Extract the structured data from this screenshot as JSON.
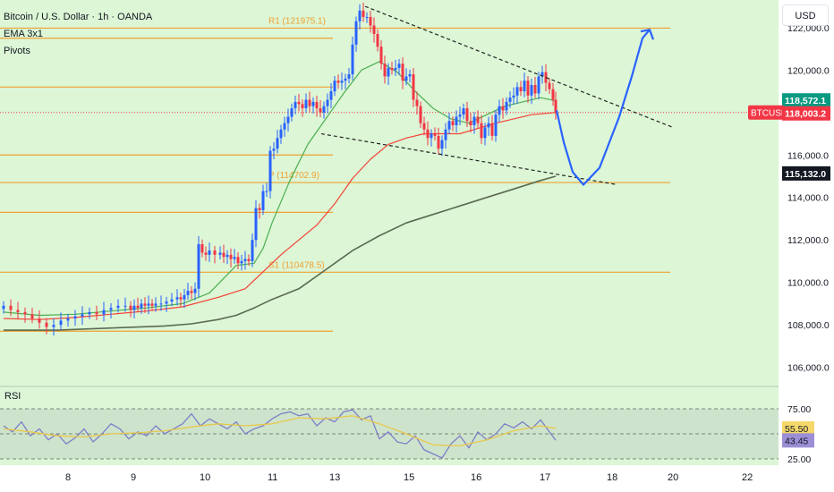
{
  "header": {
    "title": "Bitcoin / U.S. Dollar · 1h · OANDA",
    "indicator_ema": "EMA 3x1",
    "indicator_pivots": "Pivots",
    "currency": "USD"
  },
  "rsi_panel": {
    "title": "RSI"
  },
  "colors": {
    "background": "#dcf6d6",
    "up_candle": "#2962ff",
    "down_candle": "#f23645",
    "pivot_line": "#f0a030",
    "ema_fast": "#4caf50",
    "ema_mid": "#f44336",
    "ema_slow": "#5b6b4f",
    "projection": "#2962ff",
    "rsi_line": "#7e7ec8",
    "rsi_ma": "#e8c84a",
    "trend_line": "#222222"
  },
  "chart_data": [
    {
      "type": "candlestick",
      "symbol": "BTCUSD",
      "title": "Bitcoin / U.S. Dollar · 1h · OANDA",
      "x_ticks": [
        "8",
        "9",
        "10",
        "11",
        "13",
        "15",
        "16",
        "17",
        "18",
        "20",
        "22"
      ],
      "y_ticks": [
        "106,000.0",
        "108,000.0",
        "110,000.0",
        "112,000.0",
        "114,000.0",
        "116,000.0",
        "118,000.0",
        "120,000.0",
        "122,000.0"
      ],
      "ylim": [
        105100,
        123300
      ],
      "pivots": [
        {
          "label": "R1 (121975.1)",
          "value": 121975.1
        },
        {
          "label": "P (114702.9)",
          "value": 114702.9
        },
        {
          "label": "S1 (110478.5)",
          "value": 110478.5
        }
      ],
      "pivot_history_levels": [
        121500,
        119200,
        116000,
        113300,
        107700
      ],
      "price_labels": [
        {
          "text": "118,572.1",
          "value": 118572.1,
          "color": "#089981"
        },
        {
          "text": "BTCUSD",
          "value": 118003.2,
          "color": "#f23645"
        },
        {
          "text": "118,003.2",
          "value": 118003.2,
          "color": "#f23645"
        },
        {
          "text": "115,132.0",
          "value": 115132.0,
          "color": "#131722"
        }
      ],
      "series": [
        {
          "name": "BTCUSD",
          "kind": "close",
          "x": [
            0,
            8,
            16,
            24,
            32,
            40,
            48,
            56,
            64,
            72,
            80,
            88,
            96,
            104,
            112,
            120,
            128,
            136,
            142,
            146,
            150,
            154,
            158,
            162,
            166,
            170,
            176,
            182,
            188,
            194,
            198,
            202,
            206,
            210,
            214,
            218,
            222,
            226,
            230,
            236,
            242,
            246,
            250,
            254,
            258,
            262,
            266,
            270,
            274,
            278,
            282,
            286,
            290,
            294,
            298,
            302,
            306,
            310,
            314,
            318,
            322,
            326,
            330,
            334,
            338,
            342,
            346,
            350,
            354,
            358,
            362,
            366,
            370,
            374,
            378,
            382,
            386,
            390,
            394,
            398,
            402,
            406,
            410,
            414,
            418,
            422,
            426,
            430,
            434,
            438,
            442,
            446,
            450,
            454,
            458,
            462,
            466,
            470,
            474,
            478,
            482,
            486,
            490,
            494,
            498,
            502,
            506,
            510,
            514,
            518,
            522,
            526,
            530,
            534,
            538,
            542,
            546,
            550,
            554,
            558,
            562,
            566,
            570,
            574,
            578,
            582,
            586,
            590,
            594,
            598,
            602,
            606,
            610,
            614,
            617
          ],
          "values": [
            108900,
            108700,
            108600,
            108500,
            108300,
            108100,
            107900,
            108000,
            108200,
            108300,
            108400,
            108500,
            108600,
            108500,
            108700,
            108800,
            108900,
            108900,
            108700,
            108900,
            108800,
            109000,
            108900,
            109000,
            108900,
            109000,
            109000,
            109100,
            109200,
            109300,
            109200,
            109400,
            109600,
            109500,
            109700,
            111800,
            111400,
            111300,
            111500,
            111300,
            111400,
            111200,
            111300,
            111100,
            111200,
            110900,
            111000,
            111100,
            111000,
            112000,
            113500,
            113400,
            114300,
            114300,
            116200,
            116300,
            116800,
            117200,
            117500,
            117800,
            118200,
            118500,
            118400,
            118200,
            118600,
            118300,
            118500,
            118200,
            118000,
            118300,
            118600,
            119000,
            119500,
            119400,
            119500,
            119600,
            119800,
            121200,
            122300,
            122800,
            122500,
            122500,
            122100,
            121700,
            121100,
            120300,
            119700,
            120100,
            120000,
            120100,
            120300,
            119500,
            119700,
            119800,
            118600,
            118300,
            117500,
            117200,
            116800,
            117000,
            116900,
            116300,
            116700,
            117200,
            117600,
            117400,
            117800,
            117900,
            118200,
            117600,
            117400,
            117800,
            117500,
            116800,
            117300,
            117500,
            116900,
            117900,
            118300,
            118100,
            118500,
            118700,
            118800,
            119200,
            119000,
            119500,
            118800,
            119300,
            118900,
            119700,
            119900,
            119400,
            119100,
            118600,
            118003
          ]
        },
        {
          "name": "EMA 3x1 fast",
          "kind": "line",
          "x": [
            0,
            40,
            80,
            120,
            160,
            200,
            230,
            260,
            280,
            290,
            300,
            320,
            340,
            360,
            380,
            400,
            420,
            440,
            460,
            480,
            500,
            520,
            540,
            560,
            580,
            600,
            617
          ],
          "values": [
            108600,
            108450,
            108500,
            108650,
            108800,
            109000,
            109500,
            110800,
            110900,
            111600,
            112800,
            114800,
            116500,
            117700,
            118900,
            120000,
            120400,
            119900,
            119000,
            118200,
            117700,
            117500,
            117900,
            118300,
            118500,
            118700,
            118550
          ]
        },
        {
          "name": "EMA 3x1 mid",
          "kind": "line",
          "x": [
            0,
            40,
            80,
            120,
            160,
            200,
            240,
            270,
            290,
            310,
            330,
            350,
            370,
            390,
            410,
            430,
            450,
            470,
            490,
            510,
            530,
            550,
            570,
            590,
            617
          ],
          "values": [
            108300,
            108250,
            108350,
            108500,
            108650,
            108850,
            109300,
            109700,
            110500,
            111300,
            112000,
            112700,
            113700,
            114900,
            115800,
            116500,
            116800,
            117000,
            117000,
            117000,
            117250,
            117500,
            117700,
            117900,
            118000
          ]
        },
        {
          "name": "EMA 3x1 slow",
          "kind": "line",
          "x": [
            0,
            60,
            120,
            180,
            210,
            240,
            260,
            280,
            300,
            330,
            360,
            390,
            420,
            450,
            480,
            510,
            540,
            570,
            600,
            617
          ],
          "values": [
            107750,
            107750,
            107850,
            107950,
            108050,
            108250,
            108450,
            108800,
            109200,
            109700,
            110600,
            111500,
            112200,
            112800,
            113200,
            113600,
            114000,
            114400,
            114800,
            115000
          ]
        }
      ],
      "trend_lines": [
        {
          "from": [
            404,
            123000
          ],
          "to": [
            748,
            117300
          ]
        },
        {
          "from": [
            355,
            117000
          ],
          "to": [
            686,
            114600
          ]
        }
      ],
      "projection": [
        {
          "x": 618,
          "value": 118100
        },
        {
          "x": 626,
          "value": 116600
        },
        {
          "x": 636,
          "value": 115200
        },
        {
          "x": 648,
          "value": 114600
        },
        {
          "x": 666,
          "value": 115400
        },
        {
          "x": 688,
          "value": 117800
        },
        {
          "x": 702,
          "value": 119700
        },
        {
          "x": 714,
          "value": 121500
        },
        {
          "x": 722,
          "value": 121900
        }
      ]
    },
    {
      "type": "line",
      "title": "RSI",
      "y_ticks": [
        "75.00",
        "25.00"
      ],
      "ylim": [
        25,
        75
      ],
      "bands": [
        25,
        50,
        75
      ],
      "value_labels": [
        {
          "text": "55.50",
          "value": 55.5,
          "color": "#f5d86b"
        },
        {
          "text": "43.45",
          "value": 43.45,
          "color": "#9c8fd6"
        }
      ],
      "series": [
        {
          "name": "RSI",
          "x": [
            0,
            10,
            20,
            30,
            40,
            50,
            60,
            70,
            80,
            90,
            100,
            110,
            120,
            130,
            140,
            150,
            160,
            170,
            180,
            190,
            200,
            210,
            220,
            230,
            240,
            250,
            260,
            270,
            280,
            290,
            300,
            310,
            320,
            330,
            340,
            350,
            360,
            370,
            380,
            390,
            400,
            410,
            420,
            430,
            440,
            450,
            460,
            470,
            480,
            490,
            500,
            510,
            520,
            530,
            540,
            550,
            560,
            570,
            580,
            590,
            600,
            610,
            617
          ],
          "values": [
            58,
            52,
            62,
            48,
            55,
            44,
            50,
            40,
            46,
            55,
            42,
            50,
            60,
            55,
            45,
            52,
            48,
            58,
            50,
            55,
            60,
            70,
            58,
            65,
            60,
            55,
            62,
            50,
            55,
            58,
            65,
            70,
            72,
            68,
            70,
            58,
            66,
            62,
            72,
            74,
            64,
            68,
            45,
            52,
            42,
            40,
            48,
            34,
            30,
            26,
            40,
            48,
            36,
            52,
            44,
            50,
            60,
            56,
            62,
            55,
            64,
            52,
            43.45
          ]
        },
        {
          "name": "RSI MA",
          "x": [
            0,
            30,
            60,
            90,
            120,
            150,
            180,
            210,
            240,
            270,
            300,
            330,
            360,
            390,
            420,
            450,
            480,
            510,
            540,
            570,
            600,
            617
          ],
          "values": [
            55,
            52,
            48,
            47,
            50,
            51,
            53,
            57,
            60,
            58,
            60,
            66,
            65,
            68,
            60,
            50,
            39,
            38,
            44,
            53,
            58,
            55.5
          ]
        }
      ]
    }
  ]
}
